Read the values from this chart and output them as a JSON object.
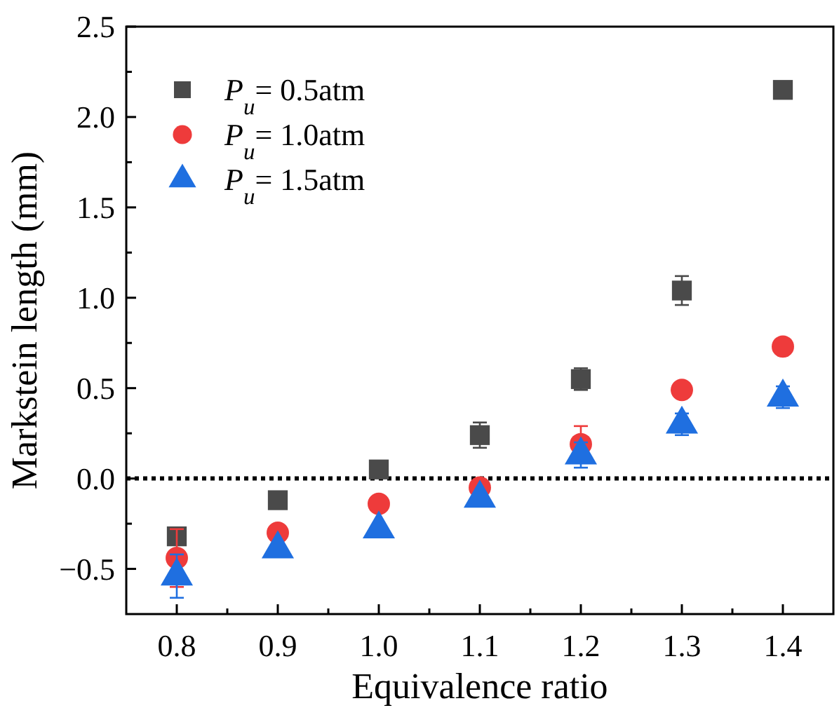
{
  "chart_data": {
    "type": "scatter",
    "xlabel": "Equivalence ratio",
    "ylabel": "Markstein length (mm)",
    "x": [
      0.8,
      0.9,
      1.0,
      1.1,
      1.2,
      1.3,
      1.4
    ],
    "series": [
      {
        "name": "P$_{u}$= 0.5atm",
        "color": "#4a4a4a",
        "marker": "square",
        "values": [
          -0.32,
          -0.12,
          0.05,
          0.24,
          0.55,
          1.04,
          2.15
        ],
        "errors": [
          null,
          null,
          null,
          0.07,
          0.06,
          0.08,
          null
        ]
      },
      {
        "name": "P$_{u}$= 1.0atm",
        "color": "#ee3b3b",
        "marker": "circle",
        "values": [
          -0.44,
          -0.3,
          -0.14,
          -0.05,
          0.19,
          0.49,
          0.73
        ],
        "errors": [
          0.16,
          null,
          null,
          null,
          0.1,
          null,
          null
        ]
      },
      {
        "name": "P$_{u}$= 1.5atm",
        "color": "#1f6fe0",
        "marker": "triangle",
        "values": [
          -0.54,
          -0.39,
          -0.28,
          -0.11,
          0.13,
          0.3,
          0.45
        ],
        "errors": [
          0.12,
          null,
          null,
          null,
          0.07,
          0.06,
          0.06
        ]
      }
    ],
    "xlim": [
      0.75,
      1.45
    ],
    "xticks": [
      0.8,
      0.9,
      {
        "value": 1,
        "label": "1.0"
      },
      1.1,
      1.2,
      1.3,
      1.4,
      {
        "value": 0.85,
        "label": null
      },
      {
        "value": 0.95,
        "label": null
      },
      {
        "value": 1.05,
        "label": null
      },
      {
        "value": 1.15,
        "label": null
      },
      {
        "value": 1.25,
        "label": null
      },
      {
        "value": 1.35,
        "label": null
      }
    ],
    "ylim": [
      -0.75,
      2.5
    ],
    "yticks": [
      {
        "value": -0.5,
        "label": "−0.5"
      },
      {
        "value": 0,
        "label": "0.0"
      },
      0.5,
      {
        "value": 1,
        "label": "1.0"
      },
      1.5,
      {
        "value": 2,
        "label": "2.0"
      },
      2.5,
      {
        "value": -0.25,
        "label": null
      },
      {
        "value": 0.25,
        "label": null
      },
      {
        "value": 0.75,
        "label": null
      },
      {
        "value": 1.25,
        "label": null
      },
      {
        "value": 1.75,
        "label": null
      },
      {
        "value": 2.25,
        "label": null
      }
    ],
    "ref_lines": [
      {
        "axis": "y",
        "value": 0,
        "label": null,
        "color": "#000000",
        "line_style": "dotted"
      }
    ],
    "legend": "top left",
    "grid": false
  }
}
